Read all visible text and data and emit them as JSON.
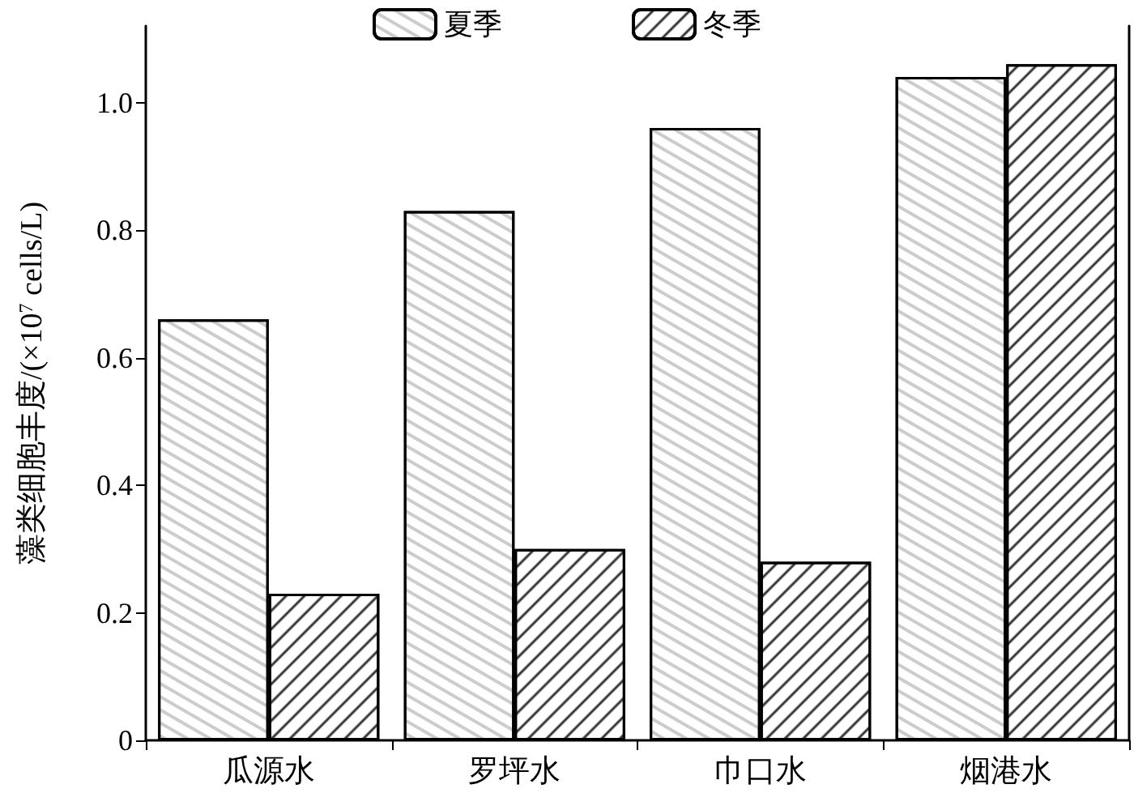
{
  "chart_data": {
    "type": "bar",
    "ylabel": "藻类细胞丰度/(×10$^{7}$ cells/L)",
    "categories": [
      "瓜源水",
      "罗坪水",
      "巾口水",
      "烟港水"
    ],
    "series": [
      {
        "name": "夏季",
        "color": "#ffffff",
        "values": [
          0.66,
          0.83,
          0.96,
          1.04
        ]
      },
      {
        "name": "冬季",
        "color": "#ffffff",
        "values": [
          0.23,
          0.3,
          0.28,
          1.06
        ]
      }
    ],
    "ylim": [
      0,
      1.12
    ],
    "yticks": [
      0,
      0.2,
      0.4,
      0.6,
      0.8,
      {
        "value": 1,
        "label": "1.0"
      }
    ],
    "grid": false,
    "legend": "top"
  }
}
